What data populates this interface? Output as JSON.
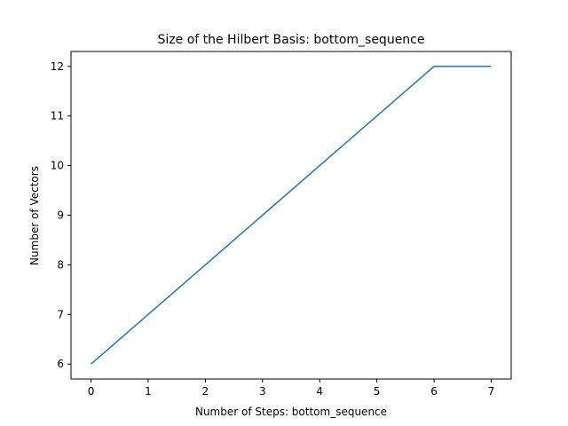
{
  "chart_data": {
    "type": "line",
    "title": "Size of the Hilbert Basis: bottom_sequence",
    "xlabel": "Number of Steps: bottom_sequence",
    "ylabel": "Number of Vectors",
    "xlim": [
      -0.35,
      7.35
    ],
    "ylim": [
      5.7,
      12.3
    ],
    "xticks": [
      0,
      1,
      2,
      3,
      4,
      5,
      6,
      7
    ],
    "yticks": [
      6,
      7,
      8,
      9,
      10,
      11,
      12
    ],
    "grid": false,
    "series": [
      {
        "x": [
          0,
          1,
          2,
          3,
          4,
          5,
          6,
          7
        ],
        "values": [
          6,
          7,
          8,
          9,
          10,
          11,
          12,
          12
        ],
        "color": "#1f77b4"
      }
    ]
  }
}
